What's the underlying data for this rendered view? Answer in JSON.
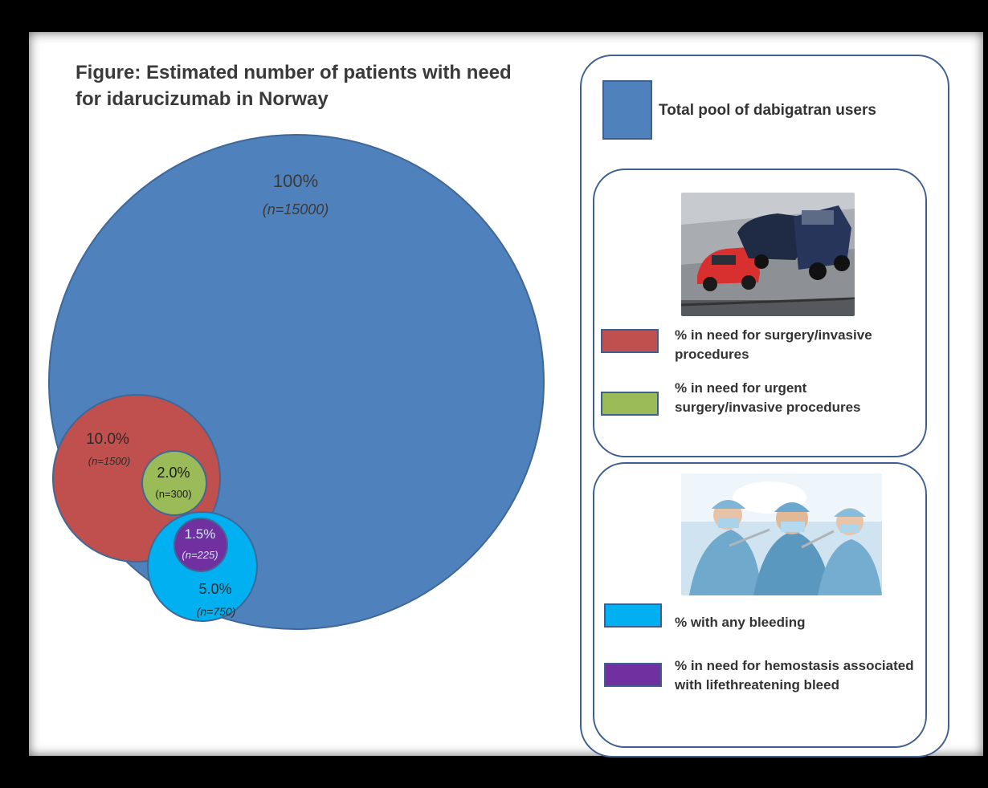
{
  "figure": {
    "title": "Figure: Estimated number of patients with need for idarucizumab in Norway"
  },
  "chart_data": {
    "type": "bubble",
    "title": "Figure: Estimated number of patients with need for idarucizumab in Norway",
    "series": [
      {
        "id": "total",
        "percent_label": "100%",
        "n_label": "(n=15000)",
        "n": 15000,
        "color": "#4f81bd"
      },
      {
        "id": "surgery",
        "percent_label": "10.0%",
        "n_label": "(n=1500)",
        "n": 1500,
        "color": "#c0504d"
      },
      {
        "id": "urgent",
        "percent_label": "2.0%",
        "n_label": "(n=300)",
        "n": 300,
        "color": "#9bbb59"
      },
      {
        "id": "bleeding",
        "percent_label": "5.0%",
        "n_label": "(n=750)",
        "n": 750,
        "color": "#00b0f0"
      },
      {
        "id": "hemostasis",
        "percent_label": "1.5%",
        "n_label": "(n=225)",
        "n": 225,
        "color": "#7030a0"
      }
    ]
  },
  "legend": {
    "total": {
      "label": "Total pool of dabigatran users",
      "color": "#4f81bd"
    },
    "surgery": {
      "label": "% in need for surgery/invasive procedures",
      "color": "#c0504d"
    },
    "urgent": {
      "label": "% in need for urgent surgery/invasive procedures",
      "color": "#9bbb59"
    },
    "bleeding": {
      "label": "% with any bleeding",
      "color": "#00b0f0"
    },
    "hemostasis": {
      "label": "% in need for hemostasis associated with lifethreatening bleed",
      "color": "#7030a0"
    }
  },
  "images": {
    "car_crash": "car-crash-photo",
    "surgeons": "surgeons-photo"
  }
}
